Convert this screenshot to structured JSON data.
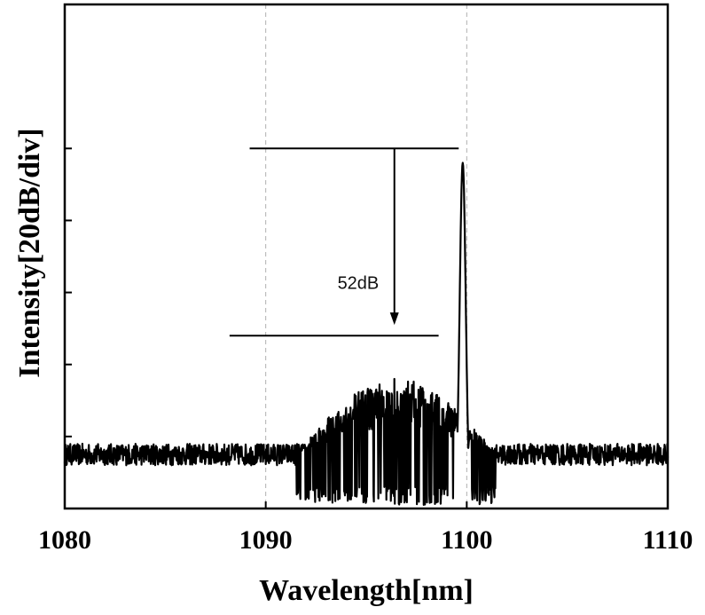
{
  "chart_data": {
    "type": "line",
    "xlabel": "Wavelength[nm]",
    "ylabel": "Intensity[20dB/div]",
    "xlim": [
      1080,
      1110
    ],
    "ylim": [
      0,
      7
    ],
    "x_ticks": [
      1080,
      1090,
      1100,
      1110
    ],
    "x_tick_labels": [
      "1080",
      "1090",
      "1100",
      "1110"
    ],
    "y_ticks": [
      1,
      2,
      3,
      4,
      5
    ],
    "y_tick_labels": [
      "",
      "",
      "",
      "",
      ""
    ],
    "grid": "vertical dashed at 1090 and 1100",
    "annotation": {
      "text": "52dB",
      "upper_line": {
        "x": [
          1089.2,
          1099.6
        ],
        "y": 5.0
      },
      "lower_line": {
        "x": [
          1088.2,
          1098.6
        ],
        "y": 2.4
      },
      "arrow": {
        "x": 1096.4,
        "y_from": 5.0,
        "y_to": 2.55
      },
      "text_pos": {
        "x": 1094.6,
        "y": 3.05
      }
    },
    "series": [
      {
        "noise_floor": 0.75,
        "noise_amplitude": 0.15,
        "peak": {
          "x": 1099.8,
          "y": 4.8,
          "width_nm": 0.15
        },
        "sidelobe_region": {
          "x": [
            1091.5,
            1101.5
          ],
          "level": 1.05,
          "dip_min": 0.05
        }
      }
    ]
  }
}
